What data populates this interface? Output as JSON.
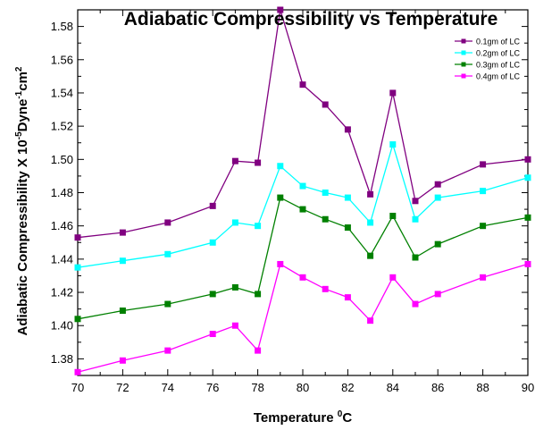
{
  "chart_data": {
    "type": "line",
    "title": "Adiabatic Compressibility vs Temperature",
    "xlabel": {
      "main": "Temperature ",
      "sup": "0",
      "tail": "C"
    },
    "ylabel": {
      "p1": "Adiabatic Compressibility X 10",
      "s1": "-5",
      "p2": "Dyne",
      "s2": "-1",
      "p3": "cm",
      "s3": "2"
    },
    "xlim": [
      70,
      90
    ],
    "ylim": [
      1.37,
      1.59
    ],
    "xticks": [
      "70",
      "72",
      "74",
      "76",
      "78",
      "80",
      "82",
      "84",
      "86",
      "88",
      "90"
    ],
    "yticks": [
      "1.38",
      "1.40",
      "1.42",
      "1.44",
      "1.46",
      "1.48",
      "1.50",
      "1.52",
      "1.54",
      "1.56",
      "1.58"
    ],
    "x": [
      70,
      72,
      74,
      76,
      77,
      78,
      79,
      80,
      81,
      82,
      83,
      84,
      85,
      86,
      88,
      90
    ],
    "grid": false,
    "legend_position": "top-right",
    "series": [
      {
        "name": "0.1gm of LC",
        "color": "#800080",
        "values": [
          1.453,
          1.456,
          1.462,
          1.472,
          1.499,
          1.498,
          1.59,
          1.545,
          1.533,
          1.518,
          1.479,
          1.54,
          1.475,
          1.485,
          1.497,
          1.5
        ]
      },
      {
        "name": "0.2gm of LC",
        "color": "#00ffff",
        "values": [
          1.435,
          1.439,
          1.443,
          1.45,
          1.462,
          1.46,
          1.496,
          1.484,
          1.48,
          1.477,
          1.462,
          1.509,
          1.464,
          1.477,
          1.481,
          1.489
        ]
      },
      {
        "name": "0.3gm of LC",
        "color": "#008000",
        "values": [
          1.404,
          1.409,
          1.413,
          1.419,
          1.423,
          1.419,
          1.477,
          1.47,
          1.464,
          1.459,
          1.442,
          1.466,
          1.441,
          1.449,
          1.46,
          1.465
        ]
      },
      {
        "name": "0.4gm of LC",
        "color": "#ff00ff",
        "values": [
          1.372,
          1.379,
          1.385,
          1.395,
          1.4,
          1.385,
          1.437,
          1.429,
          1.422,
          1.417,
          1.403,
          1.429,
          1.413,
          1.419,
          1.429,
          1.437
        ]
      }
    ]
  }
}
